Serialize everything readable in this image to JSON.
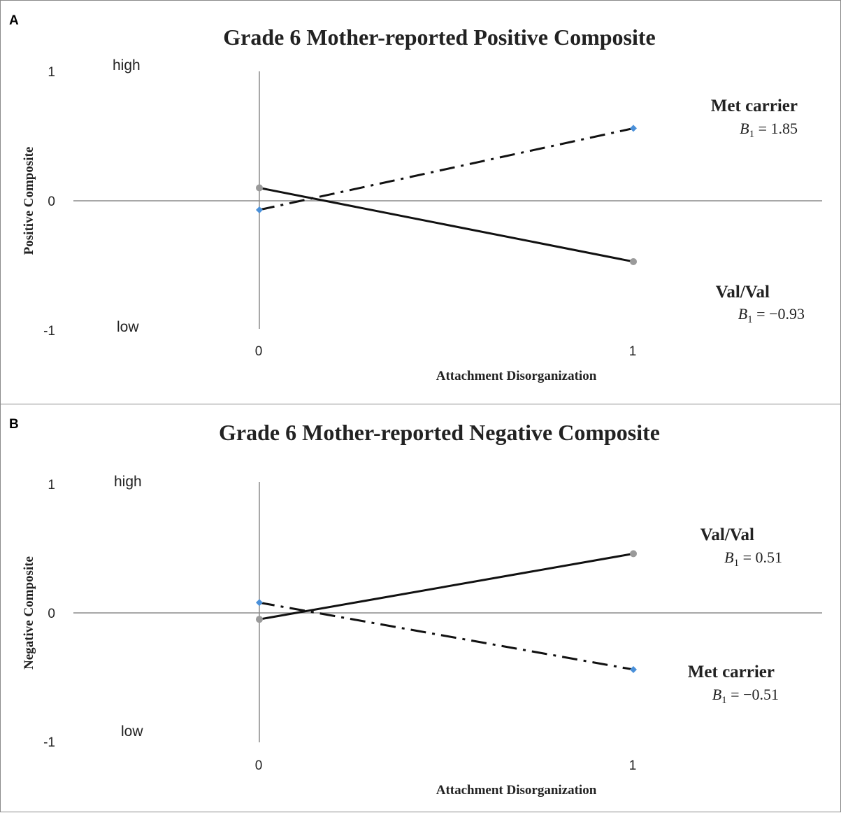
{
  "chart_data": [
    {
      "type": "line",
      "panel_label": "A",
      "title": "Grade 6 Mother-reported Positive Composite",
      "xlabel": "Attachment Disorganization",
      "ylabel": "Positive Composite",
      "x": [
        0,
        1
      ],
      "x_tick_labels": [
        "0",
        "1"
      ],
      "y_tick_labels": [
        "1",
        "0",
        "-1"
      ],
      "ylim": [
        -1,
        1
      ],
      "high_label": "high",
      "low_label": "low",
      "series": [
        {
          "name": "Met carrier",
          "coef_symbol": "B",
          "coef_subscript": "1",
          "coef_text": "= 1.85",
          "values": [
            -0.07,
            0.56
          ],
          "line_style": "dash-dot",
          "marker": "diamond",
          "marker_color": "#4a90d9"
        },
        {
          "name": "Val/Val",
          "coef_symbol": "B",
          "coef_subscript": "1",
          "coef_text": "= −0.93",
          "values": [
            0.1,
            -0.47
          ],
          "line_style": "solid",
          "marker": "circle",
          "marker_color": "#9a9a9a"
        }
      ]
    },
    {
      "type": "line",
      "panel_label": "B",
      "title": "Grade 6 Mother-reported Negative Composite",
      "xlabel": "Attachment Disorganization",
      "ylabel": "Negative Composite",
      "x": [
        0,
        1
      ],
      "x_tick_labels": [
        "0",
        "1"
      ],
      "y_tick_labels": [
        "1",
        "0",
        "-1"
      ],
      "ylim": [
        -1,
        1
      ],
      "high_label": "high",
      "low_label": "low",
      "series": [
        {
          "name": "Val/Val",
          "coef_symbol": "B",
          "coef_subscript": "1",
          "coef_text": "= 0.51",
          "values": [
            -0.05,
            0.46
          ],
          "line_style": "solid",
          "marker": "circle",
          "marker_color": "#9a9a9a"
        },
        {
          "name": "Met carrier",
          "coef_symbol": "B",
          "coef_subscript": "1",
          "coef_text": "= −0.51",
          "values": [
            0.08,
            -0.44
          ],
          "line_style": "dash-dot",
          "marker": "diamond",
          "marker_color": "#4a90d9"
        }
      ]
    }
  ]
}
